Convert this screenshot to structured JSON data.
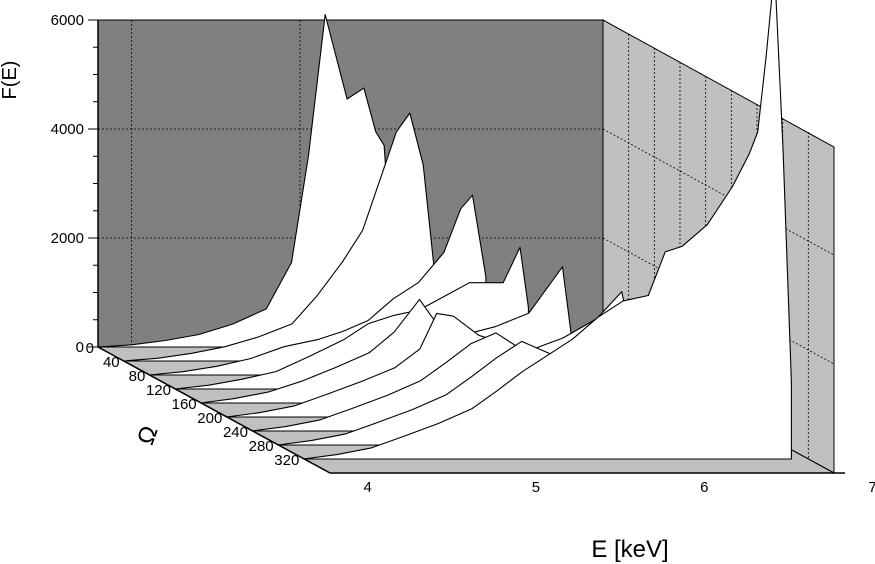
{
  "chart_data": {
    "type": "area",
    "projection": "3d-waterfall",
    "ylabel": "F(E)",
    "xlabel": "E [keV]",
    "zlabel": "Ω",
    "ylim": [
      0,
      6000
    ],
    "y_ticks": [
      "0",
      "2000",
      "4000",
      "6000"
    ],
    "xlim": [
      3.8,
      6.8
    ],
    "x_ticks": [
      "4",
      "5",
      "6",
      "7"
    ],
    "z_ticks": [
      "0",
      "40",
      "80",
      "120",
      "160",
      "200",
      "240",
      "280",
      "320"
    ],
    "grid": true,
    "legend": "none",
    "colors": {
      "back_wall": "#808080",
      "side_wall": "#c0c0c0",
      "floor": "#c0c0c0",
      "curve_fill": "#ffffff",
      "line": "#000000"
    },
    "series": [
      {
        "omega": 0,
        "x": [
          3.8,
          4.0,
          4.2,
          4.4,
          4.6,
          4.8,
          4.95,
          5.05,
          5.15,
          5.28,
          5.38,
          5.45,
          5.5,
          5.55
        ],
        "y": [
          0,
          40,
          120,
          230,
          420,
          700,
          1550,
          3500,
          6100,
          4550,
          4750,
          3950,
          3700,
          1500
        ]
      },
      {
        "omega": 40,
        "x": [
          3.8,
          4.0,
          4.2,
          4.4,
          4.6,
          4.8,
          4.95,
          5.1,
          5.22,
          5.32,
          5.42,
          5.5,
          5.58,
          5.65
        ],
        "y": [
          0,
          50,
          140,
          260,
          440,
          680,
          1200,
          1820,
          2400,
          3300,
          4200,
          4550,
          3600,
          1550
        ]
      },
      {
        "omega": 80,
        "x": [
          3.8,
          4.0,
          4.2,
          4.4,
          4.6,
          4.8,
          4.95,
          5.1,
          5.25,
          5.4,
          5.55,
          5.65,
          5.72,
          5.8
        ],
        "y": [
          0,
          60,
          160,
          300,
          520,
          650,
          800,
          1000,
          1400,
          1700,
          2250,
          3050,
          3300,
          1800
        ]
      },
      {
        "omega": 120,
        "x": [
          3.8,
          4.0,
          4.2,
          4.4,
          4.6,
          4.8,
          4.95,
          5.1,
          5.25,
          5.4,
          5.55,
          5.75,
          5.85,
          5.9
        ],
        "y": [
          0,
          70,
          180,
          320,
          600,
          900,
          1200,
          1350,
          1450,
          1700,
          1950,
          1950,
          2600,
          1500
        ]
      },
      {
        "omega": 160,
        "x": [
          3.8,
          4.0,
          4.2,
          4.4,
          4.6,
          4.8,
          4.95,
          5.1,
          5.25,
          5.4,
          5.55,
          5.75,
          5.95,
          6.0
        ],
        "y": [
          0,
          80,
          200,
          400,
          650,
          920,
          1300,
          1900,
          1250,
          1280,
          1400,
          1650,
          2500,
          1300
        ]
      },
      {
        "omega": 200,
        "x": [
          3.8,
          4.0,
          4.2,
          4.4,
          4.6,
          4.8,
          4.95,
          5.05,
          5.15,
          5.3,
          5.45,
          5.6,
          5.8,
          6.0,
          6.15,
          6.2
        ],
        "y": [
          0,
          80,
          200,
          420,
          650,
          900,
          1250,
          1900,
          1850,
          1500,
          1350,
          1220,
          1450,
          1800,
          2300,
          1500
        ]
      },
      {
        "omega": 240,
        "x": [
          3.8,
          4.0,
          4.2,
          4.4,
          4.6,
          4.8,
          4.95,
          5.1,
          5.25,
          5.4,
          5.55,
          5.75,
          6.0,
          6.2,
          6.35,
          6.4
        ],
        "y": [
          0,
          80,
          200,
          420,
          650,
          920,
          1250,
          1600,
          1800,
          1500,
          1100,
          1150,
          1250,
          1600,
          2300,
          1600
        ]
      },
      {
        "omega": 280,
        "x": [
          3.8,
          4.0,
          4.2,
          4.4,
          4.6,
          4.8,
          4.95,
          5.1,
          5.25,
          5.4,
          5.55,
          5.75,
          6.0,
          6.2,
          6.35,
          6.45,
          6.52,
          6.55
        ],
        "y": [
          0,
          80,
          200,
          420,
          650,
          920,
          1250,
          1600,
          1900,
          1700,
          1500,
          1000,
          1000,
          1300,
          1700,
          1950,
          2300,
          1600
        ]
      },
      {
        "omega": 320,
        "x": [
          3.8,
          4.0,
          4.2,
          4.4,
          4.6,
          4.8,
          4.95,
          5.1,
          5.25,
          5.4,
          5.55,
          5.7,
          5.85,
          5.95,
          6.05,
          6.2,
          6.35,
          6.45,
          6.5,
          6.55,
          6.6,
          6.65,
          6.7
        ],
        "y": [
          0,
          80,
          200,
          420,
          650,
          920,
          1250,
          1600,
          1900,
          2200,
          2600,
          2900,
          3000,
          3800,
          3900,
          4300,
          5000,
          5600,
          6000,
          7400,
          9000,
          5700,
          1400
        ]
      }
    ]
  }
}
